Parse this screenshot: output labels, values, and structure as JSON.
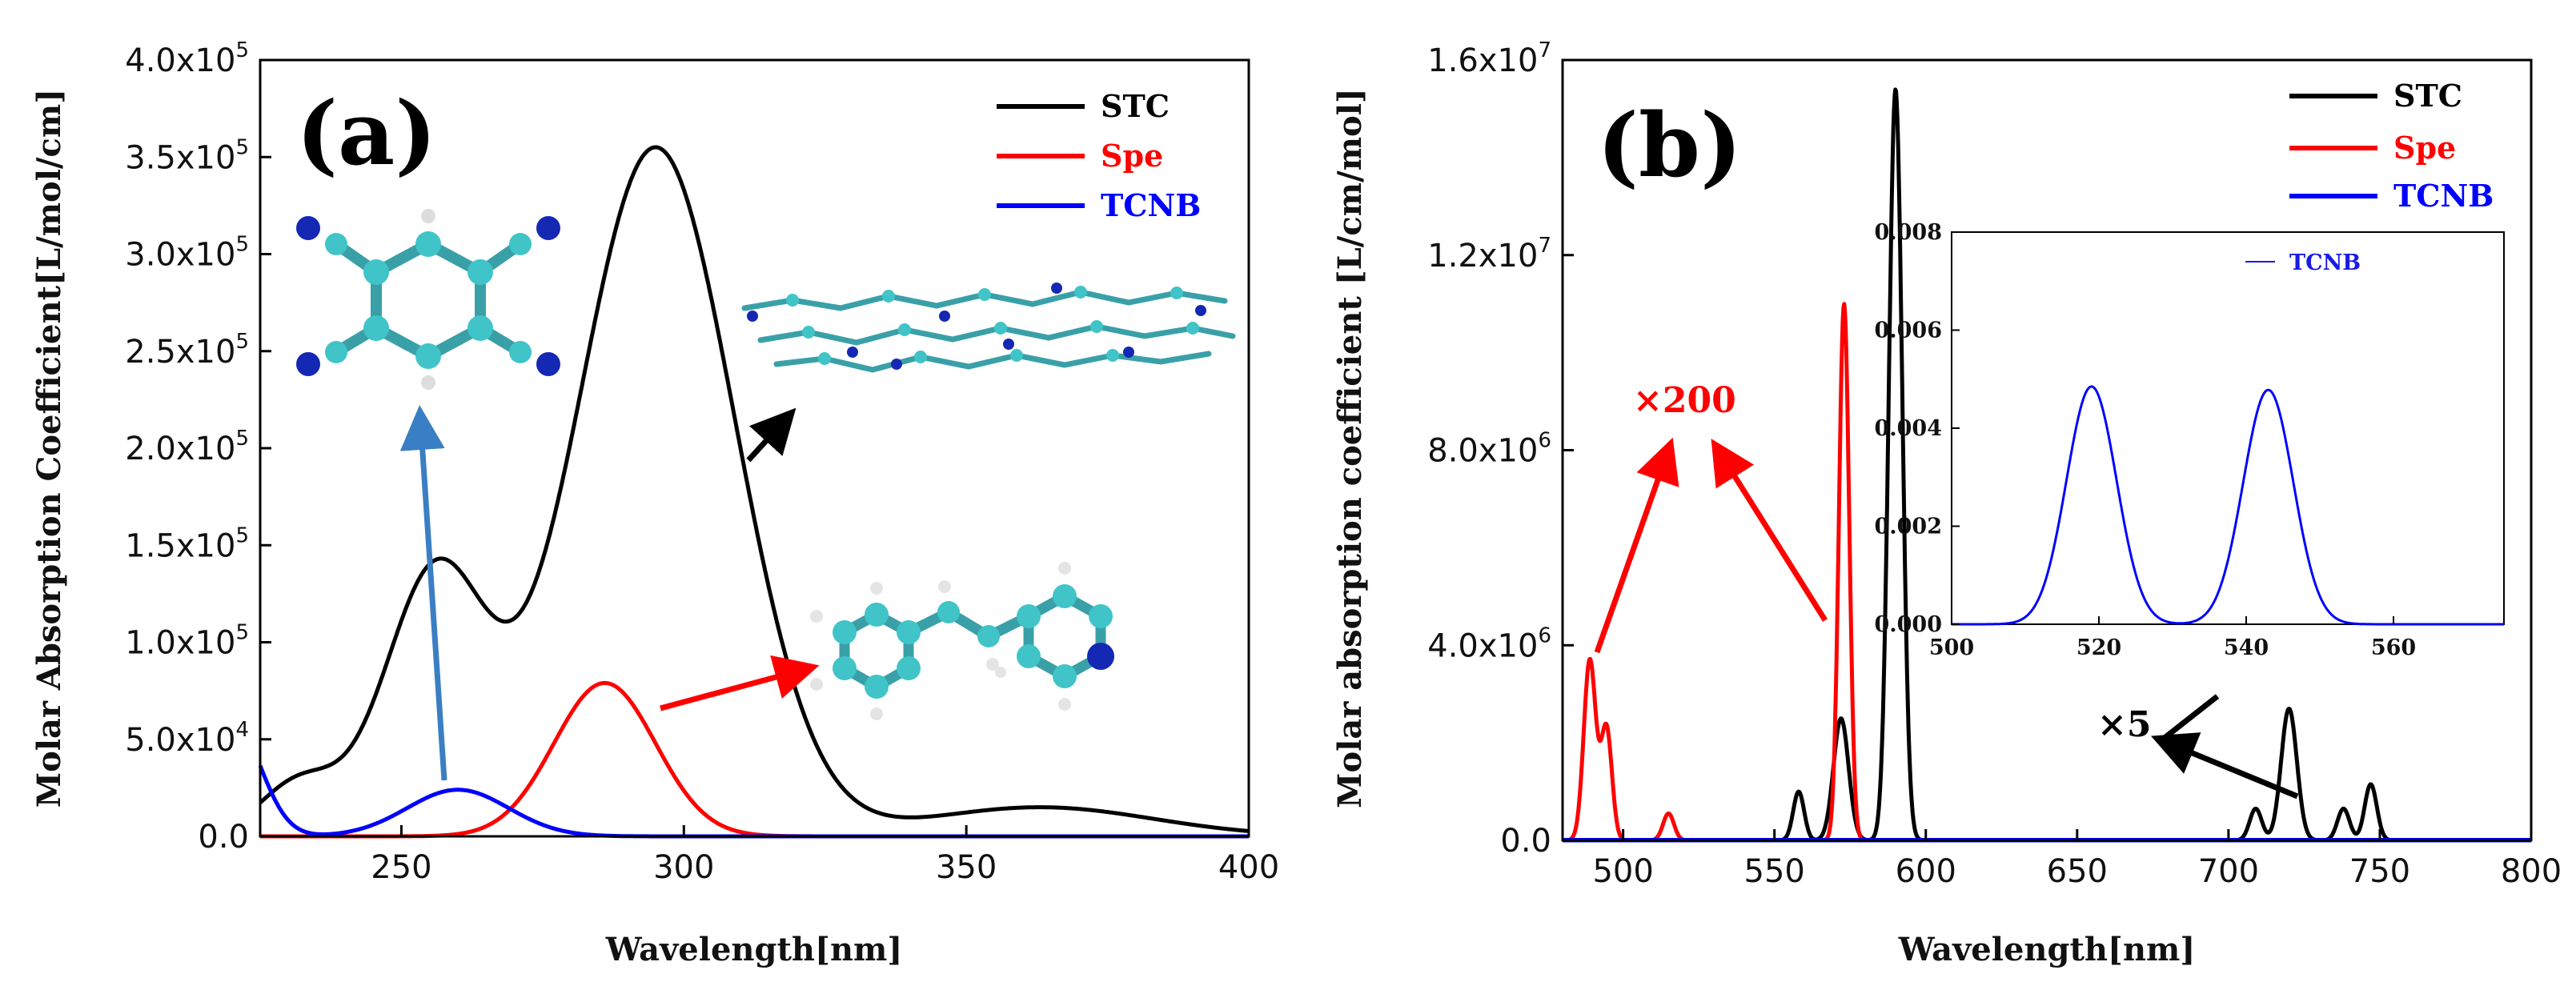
{
  "colors": {
    "stc": "#000000",
    "spe": "#ff0000",
    "tcnb": "#0000ff",
    "arrow_blue": "#3a7fc4"
  },
  "chart_data": [
    {
      "panel": "a",
      "panel_label": "(a)",
      "type": "line",
      "xlabel": "Wavelength[nm]",
      "ylabel": "Molar Absorption Coefficient[L/mol/cm]",
      "xlim": [
        225,
        400
      ],
      "ylim": [
        0,
        400000
      ],
      "x_ticks": [
        250,
        300,
        350,
        400
      ],
      "y_ticks": [
        {
          "value": 0,
          "mant": "0.0",
          "exp": ""
        },
        {
          "value": 50000,
          "mant": "5.0x10",
          "exp": "4"
        },
        {
          "value": 100000,
          "mant": "1.0x10",
          "exp": "5"
        },
        {
          "value": 150000,
          "mant": "1.5x10",
          "exp": "5"
        },
        {
          "value": 200000,
          "mant": "2.0x10",
          "exp": "5"
        },
        {
          "value": 250000,
          "mant": "2.5x10",
          "exp": "5"
        },
        {
          "value": 300000,
          "mant": "3.0x10",
          "exp": "5"
        },
        {
          "value": 350000,
          "mant": "3.5x10",
          "exp": "5"
        },
        {
          "value": 400000,
          "mant": "4.0x10",
          "exp": "5"
        }
      ],
      "legend_position": "top-right",
      "series": [
        {
          "name": "STC",
          "color": "#000000",
          "peaks": [
            {
              "center": 232,
              "amp": 28000,
              "width": 7
            },
            {
              "center": 256,
              "amp": 135000,
              "width": 9
            },
            {
              "center": 295,
              "amp": 355000,
              "width": 14
            },
            {
              "center": 363,
              "amp": 15000,
              "width": 20
            }
          ]
        },
        {
          "name": "Spe",
          "color": "#ff0000",
          "peaks": [
            {
              "center": 286,
              "amp": 79000,
              "width": 9
            }
          ]
        },
        {
          "name": "TCNB",
          "color": "#0000ff",
          "peaks": [
            {
              "center": 220,
              "amp": 60000,
              "width": 5
            },
            {
              "center": 260,
              "amp": 24000,
              "width": 9
            }
          ]
        }
      ]
    },
    {
      "panel": "b",
      "panel_label": "(b)",
      "type": "line",
      "xlabel": "Wavelength[nm]",
      "ylabel": "Molar absorption coefficient [L/cm/mol]",
      "xlim": [
        480,
        800
      ],
      "ylim": [
        0,
        16000000
      ],
      "x_ticks": [
        500,
        550,
        600,
        650,
        700,
        750,
        800
      ],
      "y_ticks": [
        {
          "value": 0,
          "mant": "0.0",
          "exp": ""
        },
        {
          "value": 4000000,
          "mant": "4.0x10",
          "exp": "6"
        },
        {
          "value": 8000000,
          "mant": "8.0x10",
          "exp": "6"
        },
        {
          "value": 12000000,
          "mant": "1.2x10",
          "exp": "7"
        },
        {
          "value": 16000000,
          "mant": "1.6x10",
          "exp": "7"
        }
      ],
      "legend_position": "top-right",
      "series": [
        {
          "name": "STC",
          "color": "#000000",
          "peaks": [
            {
              "center": 558,
              "amp": 1000000,
              "width": 1.8
            },
            {
              "center": 572,
              "amp": 2500000,
              "width": 2.5
            },
            {
              "center": 590,
              "amp": 15400000,
              "width": 2.2
            },
            {
              "center": 709,
              "amp": 650000,
              "width": 2
            },
            {
              "center": 720,
              "amp": 2700000,
              "width": 2.6
            },
            {
              "center": 738,
              "amp": 650000,
              "width": 2
            },
            {
              "center": 747,
              "amp": 1150000,
              "width": 2
            }
          ]
        },
        {
          "name": "Spe",
          "color": "#ff0000",
          "peaks": [
            {
              "center": 489,
              "amp": 3700000,
              "width": 2
            },
            {
              "center": 494.5,
              "amp": 2300000,
              "width": 1.8
            },
            {
              "center": 515,
              "amp": 550000,
              "width": 1.8
            },
            {
              "center": 573,
              "amp": 11000000,
              "width": 1.7
            }
          ]
        },
        {
          "name": "TCNB",
          "color": "#0000ff",
          "peaks": []
        }
      ],
      "annotations": [
        {
          "text": "×200",
          "color": "#ff0000"
        },
        {
          "text": "×5",
          "color": "#000000"
        }
      ],
      "inset": {
        "type": "line",
        "xlim": [
          500,
          575
        ],
        "ylim": [
          0,
          0.008
        ],
        "x_ticks": [
          "500",
          "520",
          "540",
          "560"
        ],
        "x_tick_values": [
          500,
          520,
          540,
          560
        ],
        "y_ticks": [
          "0.000",
          "0.002",
          "0.004",
          "0.006",
          "0.008"
        ],
        "y_tick_values": [
          0,
          0.002,
          0.004,
          0.006,
          0.008
        ],
        "legend": "TCNB",
        "series": [
          {
            "name": "TCNB",
            "color": "#0000ff",
            "peaks": [
              {
                "center": 519,
                "amp": 0.00485,
                "width": 3.4
              },
              {
                "center": 543,
                "amp": 0.00478,
                "width": 3.4
              }
            ]
          }
        ]
      }
    }
  ]
}
